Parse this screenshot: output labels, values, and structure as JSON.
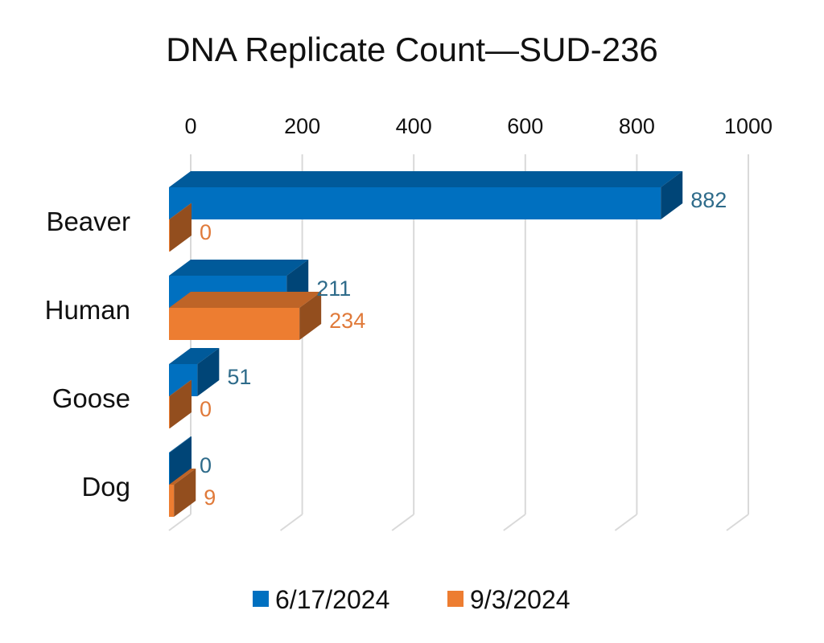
{
  "chart_data": {
    "type": "bar",
    "orientation": "horizontal",
    "style": "3d",
    "title": "DNA Replicate Count—SUD-236",
    "xlabel": "",
    "ylabel": "",
    "xlim": [
      0,
      1000
    ],
    "xticks": [
      "0",
      "200",
      "400",
      "600",
      "800",
      "1000"
    ],
    "xtick_values": [
      0,
      200,
      400,
      600,
      800,
      1000
    ],
    "categories": [
      "Beaver",
      "Human",
      "Goose",
      "Dog"
    ],
    "series": [
      {
        "name": "6/17/2024",
        "values": [
          882,
          211,
          51,
          0
        ],
        "labels": [
          "882",
          "211",
          "51",
          "0"
        ],
        "color": "#0070C0",
        "label_color": "#2E6B8A"
      },
      {
        "name": "9/3/2024",
        "values": [
          0,
          234,
          0,
          9
        ],
        "labels": [
          "0",
          "234",
          "0",
          "9"
        ],
        "color": "#ED7D31",
        "label_color": "#E07A3A"
      }
    ],
    "grid": true,
    "legend": "bottom"
  }
}
